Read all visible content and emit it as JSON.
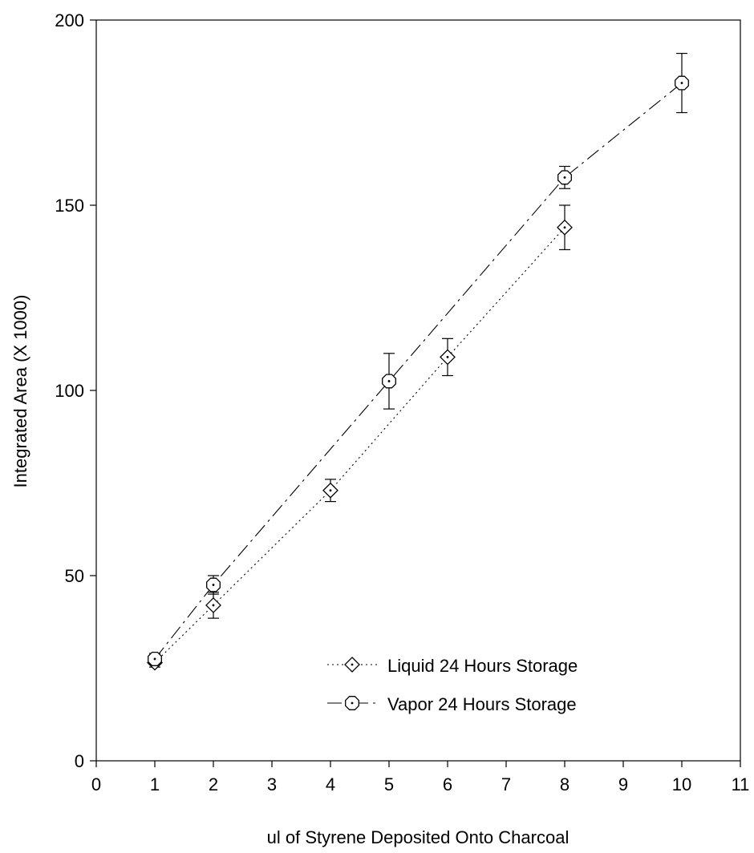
{
  "chart_data": {
    "type": "scatter",
    "title": "",
    "xlabel": "ul of Styrene Deposited Onto Charcoal",
    "ylabel": "Integrated Area (X 1000)",
    "xlim": [
      0,
      11
    ],
    "ylim": [
      0,
      200
    ],
    "xticks": [
      0,
      1,
      2,
      3,
      4,
      5,
      6,
      7,
      8,
      9,
      10,
      11
    ],
    "yticks": [
      0,
      50,
      100,
      150,
      200
    ],
    "grid": false,
    "legend_position": "bottom-right",
    "series": [
      {
        "name": "Liquid 24 Hours Storage",
        "marker": "diamond",
        "line_style": "dotted",
        "x": [
          1,
          2,
          4,
          6,
          8
        ],
        "y": [
          26.5,
          42,
          73,
          109,
          144
        ],
        "error": [
          1.2,
          3.5,
          3,
          5,
          6
        ]
      },
      {
        "name": "Vapor 24 Hours Storage",
        "marker": "hexagon",
        "line_style": "dash-dot",
        "x": [
          1,
          2,
          5,
          8,
          10
        ],
        "y": [
          27.5,
          47.5,
          102.5,
          157.5,
          183
        ],
        "error": [
          1.5,
          2.5,
          7.5,
          3,
          8
        ]
      }
    ]
  }
}
